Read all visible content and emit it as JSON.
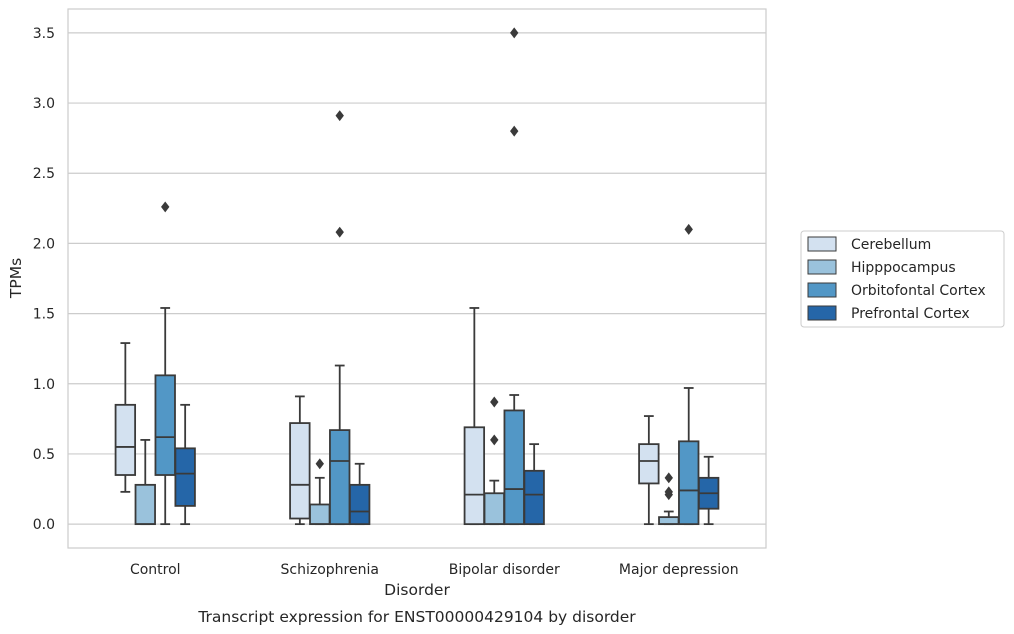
{
  "caption": "Transcript expression for ENST00000429104 by disorder",
  "chart_data": {
    "type": "box",
    "title": "",
    "xlabel": "Disorder",
    "ylabel": "TPMs",
    "ylim": [
      -0.17,
      3.67
    ],
    "yticks": [
      "0.0",
      "0.5",
      "1.0",
      "1.5",
      "2.0",
      "2.5",
      "3.0",
      "3.5"
    ],
    "grid": "horizontal",
    "legend_position": "right",
    "categories": [
      "Control",
      "Schizophrenia",
      "Bipolar disorder",
      "Major depression"
    ],
    "series": [
      {
        "name": "Cerebellum",
        "color": "#d3e1f0",
        "boxes": [
          {
            "whislo": 0.23,
            "q1": 0.35,
            "med": 0.55,
            "q3": 0.85,
            "whishi": 1.29,
            "fliers": []
          },
          {
            "whislo": 0.0,
            "q1": 0.04,
            "med": 0.28,
            "q3": 0.72,
            "whishi": 0.91,
            "fliers": []
          },
          {
            "whislo": 0.0,
            "q1": 0.0,
            "med": 0.21,
            "q3": 0.69,
            "whishi": 1.54,
            "fliers": []
          },
          {
            "whislo": 0.0,
            "q1": 0.29,
            "med": 0.45,
            "q3": 0.57,
            "whishi": 0.77,
            "fliers": []
          }
        ]
      },
      {
        "name": "Hipppocampus",
        "color": "#9ac2dc",
        "boxes": [
          {
            "whislo": 0.0,
            "q1": 0.0,
            "med": 0.0,
            "q3": 0.28,
            "whishi": 0.6,
            "fliers": []
          },
          {
            "whislo": 0.0,
            "q1": 0.0,
            "med": 0.0,
            "q3": 0.14,
            "whishi": 0.33,
            "fliers": [
              0.43
            ]
          },
          {
            "whislo": 0.0,
            "q1": 0.0,
            "med": 0.0,
            "q3": 0.22,
            "whishi": 0.31,
            "fliers": [
              0.6,
              0.87
            ]
          },
          {
            "whislo": 0.0,
            "q1": 0.0,
            "med": 0.0,
            "q3": 0.05,
            "whishi": 0.09,
            "fliers": [
              0.21,
              0.23,
              0.33
            ]
          }
        ]
      },
      {
        "name": "Orbitofontal Cortex",
        "color": "#5297c6",
        "boxes": [
          {
            "whislo": 0.0,
            "q1": 0.35,
            "med": 0.62,
            "q3": 1.06,
            "whishi": 1.54,
            "fliers": [
              2.26
            ]
          },
          {
            "whislo": 0.0,
            "q1": 0.0,
            "med": 0.45,
            "q3": 0.67,
            "whishi": 1.13,
            "fliers": [
              2.08,
              2.91
            ]
          },
          {
            "whislo": 0.0,
            "q1": 0.0,
            "med": 0.25,
            "q3": 0.81,
            "whishi": 0.92,
            "fliers": [
              2.8,
              3.5
            ]
          },
          {
            "whislo": 0.0,
            "q1": 0.0,
            "med": 0.24,
            "q3": 0.59,
            "whishi": 0.97,
            "fliers": [
              2.1
            ]
          }
        ]
      },
      {
        "name": "Prefrontal Cortex",
        "color": "#2566a8",
        "boxes": [
          {
            "whislo": 0.0,
            "q1": 0.13,
            "med": 0.36,
            "q3": 0.54,
            "whishi": 0.85,
            "fliers": []
          },
          {
            "whislo": 0.0,
            "q1": 0.0,
            "med": 0.09,
            "q3": 0.28,
            "whishi": 0.43,
            "fliers": []
          },
          {
            "whislo": 0.0,
            "q1": 0.0,
            "med": 0.21,
            "q3": 0.38,
            "whishi": 0.57,
            "fliers": []
          },
          {
            "whislo": 0.0,
            "q1": 0.11,
            "med": 0.22,
            "q3": 0.33,
            "whishi": 0.48,
            "fliers": []
          }
        ]
      }
    ]
  }
}
